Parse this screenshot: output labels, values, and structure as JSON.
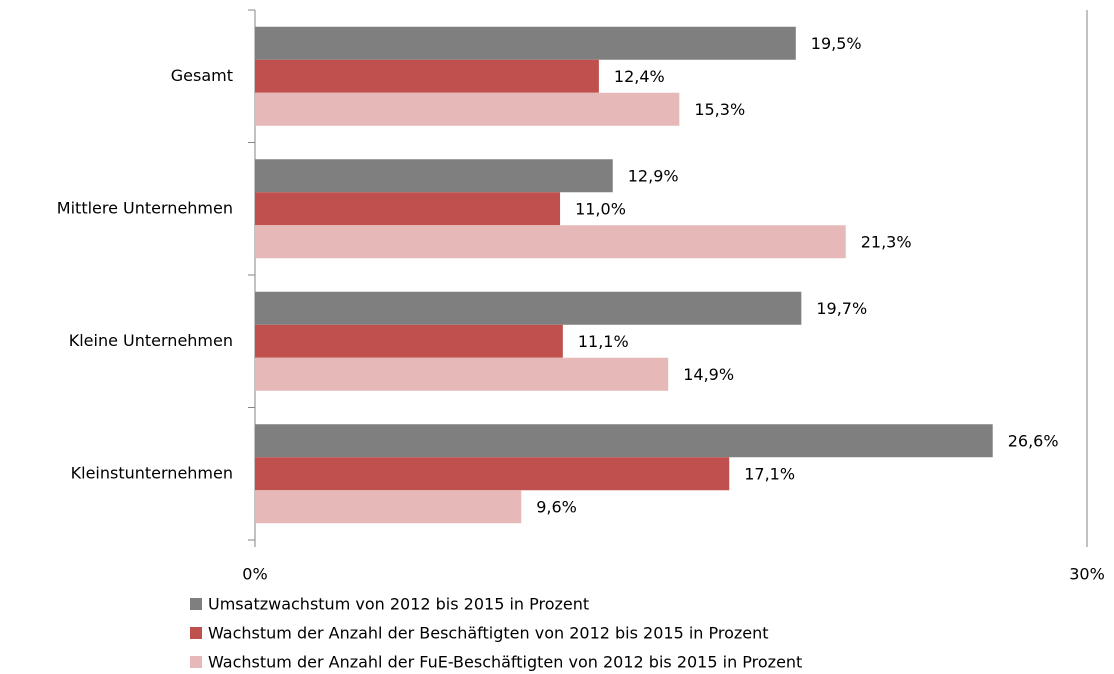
{
  "chart_data": {
    "type": "barh",
    "categories": [
      "Gesamt",
      "Mittlere Unternehmen",
      "Kleine Unternehmen",
      "Kleinstunternehmen"
    ],
    "series": [
      {
        "name": "Umsatzwachstum von 2012 bis 2015 in Prozent",
        "color": "#7f7f7f",
        "values": [
          19.5,
          12.9,
          19.7,
          26.6
        ],
        "value_labels": [
          "19,5%",
          "12,9%",
          "19,7%",
          "26,6%"
        ]
      },
      {
        "name": "Wachstum der Anzahl der Beschäftigten von 2012 bis 2015 in Prozent",
        "color": "#c0504d",
        "values": [
          12.4,
          11.0,
          11.1,
          17.1
        ],
        "value_labels": [
          "12,4%",
          "11,0%",
          "11,1%",
          "17,1%"
        ]
      },
      {
        "name": "Wachstum der Anzahl der FuE-Beschäftigten von 2012 bis 2015 in Prozent",
        "color": "#e6b9b8",
        "values": [
          15.3,
          21.3,
          14.9,
          9.6
        ],
        "value_labels": [
          "15,3%",
          "21,3%",
          "14,9%",
          "9,6%"
        ]
      }
    ],
    "xlim": [
      0,
      30
    ],
    "xticks": [
      {
        "value": 0,
        "label": "0%"
      },
      {
        "value": 30,
        "label": "30%"
      }
    ],
    "legend": "bottom"
  }
}
